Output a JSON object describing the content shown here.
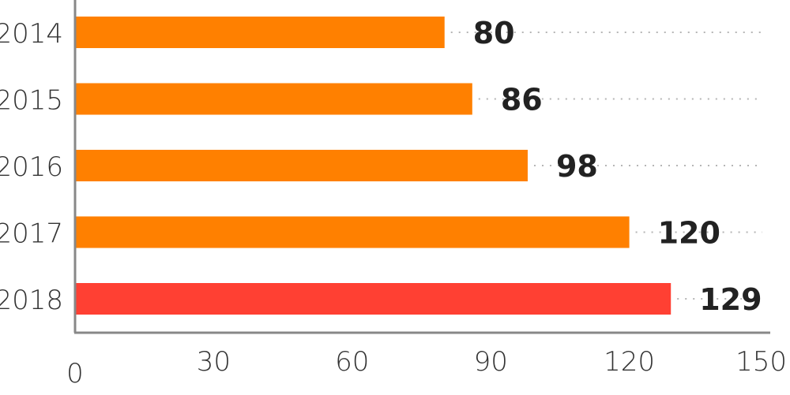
{
  "chart_data": {
    "type": "bar",
    "orientation": "horizontal",
    "categories": [
      "2014",
      "2015",
      "2016",
      "2017",
      "2018"
    ],
    "values": [
      80,
      86,
      98,
      120,
      129
    ],
    "bar_colors": [
      "#ff8000",
      "#ff8000",
      "#ff8000",
      "#ff8000",
      "#ff4033"
    ],
    "title": "",
    "xlabel": "",
    "ylabel": "",
    "xlim": [
      0,
      150
    ],
    "x_ticks": [
      "0",
      "30",
      "60",
      "90",
      "120",
      "150"
    ],
    "grid": "dotted horizontal guide lines",
    "legend": "none"
  }
}
